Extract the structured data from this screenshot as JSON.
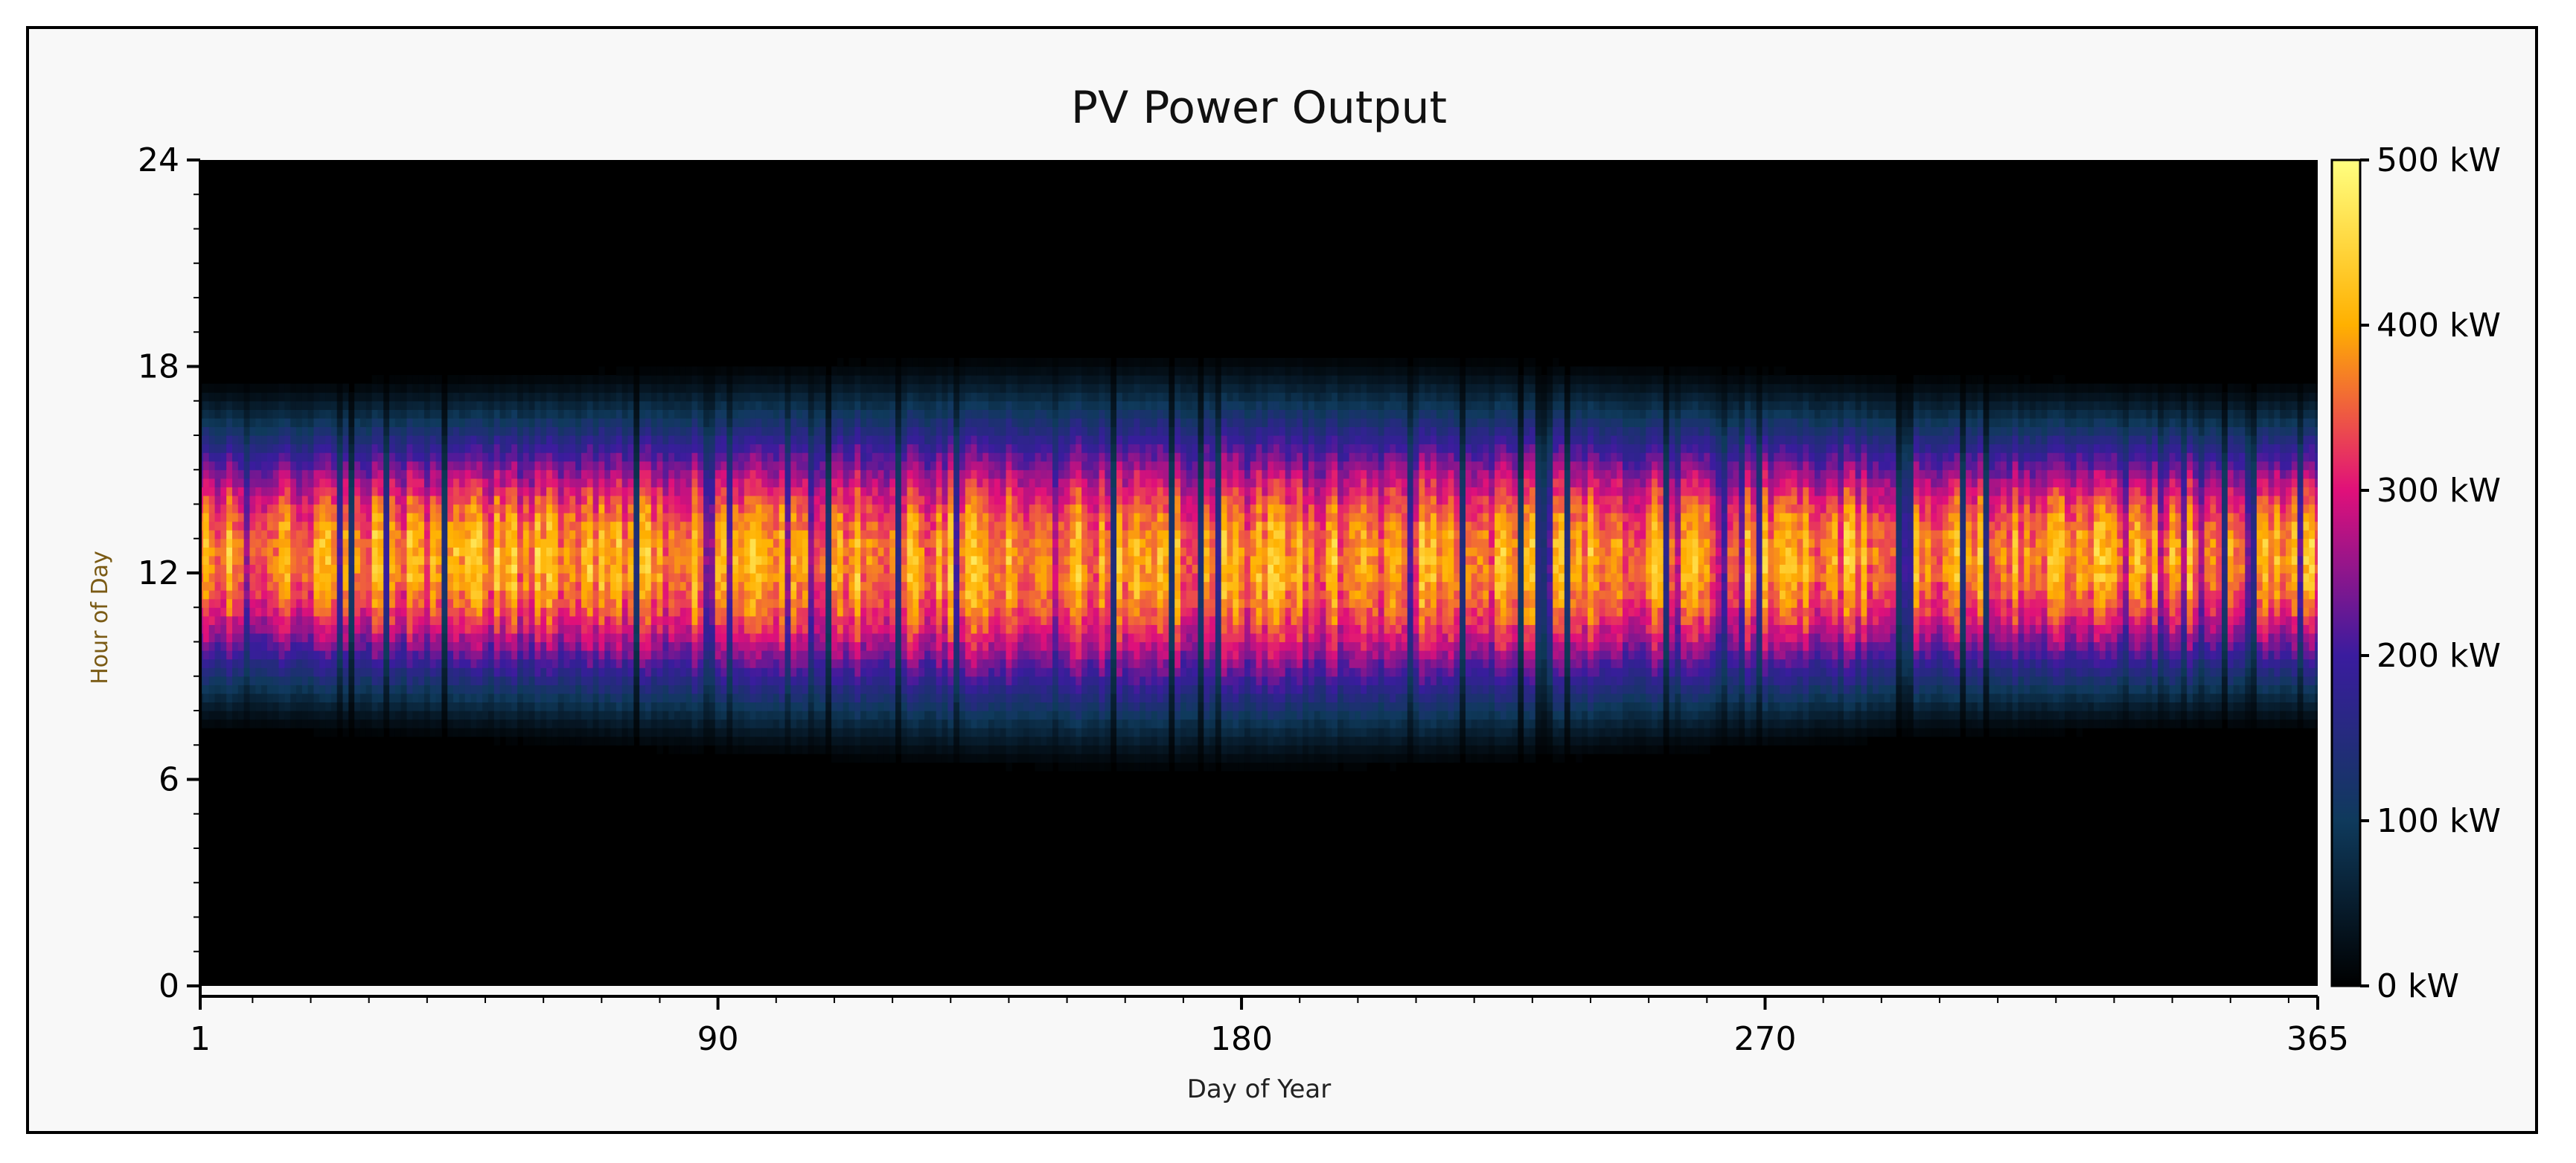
{
  "chart_data": {
    "type": "heatmap",
    "title": "PV Power Output",
    "xlabel": "Day of Year",
    "ylabel": "Hour of Day",
    "xlim": [
      1,
      365
    ],
    "ylim": [
      0,
      24
    ],
    "x_ticks": [
      {
        "value": 1,
        "label": "1"
      },
      {
        "value": 90,
        "label": "90"
      },
      {
        "value": 180,
        "label": "180"
      },
      {
        "value": 270,
        "label": "270"
      },
      {
        "value": 365,
        "label": "365"
      }
    ],
    "y_ticks": [
      {
        "value": 0,
        "label": "0"
      },
      {
        "value": 6,
        "label": "6"
      },
      {
        "value": 12,
        "label": "12"
      },
      {
        "value": 18,
        "label": "18"
      },
      {
        "value": 24,
        "label": "24"
      }
    ],
    "colorbar": {
      "min": 0,
      "max": 500,
      "unit": "kW",
      "ticks": [
        {
          "value": 0,
          "label": "0 kW"
        },
        {
          "value": 100,
          "label": "100 kW"
        },
        {
          "value": 200,
          "label": "200 kW"
        },
        {
          "value": 300,
          "label": "300 kW"
        },
        {
          "value": 400,
          "label": "400 kW"
        },
        {
          "value": 500,
          "label": "500 kW"
        }
      ],
      "colors": [
        "#000000",
        "#0f3a5c",
        "#3a1c9e",
        "#e0107a",
        "#ffb000",
        "#ffff80"
      ]
    },
    "daylight_window": {
      "sunrise_hour_winter": 7.2,
      "sunrise_hour_summer": 6.0,
      "sunset_hour_winter": 17.8,
      "sunset_hour_summer": 18.6,
      "peak_kw": 480
    }
  }
}
